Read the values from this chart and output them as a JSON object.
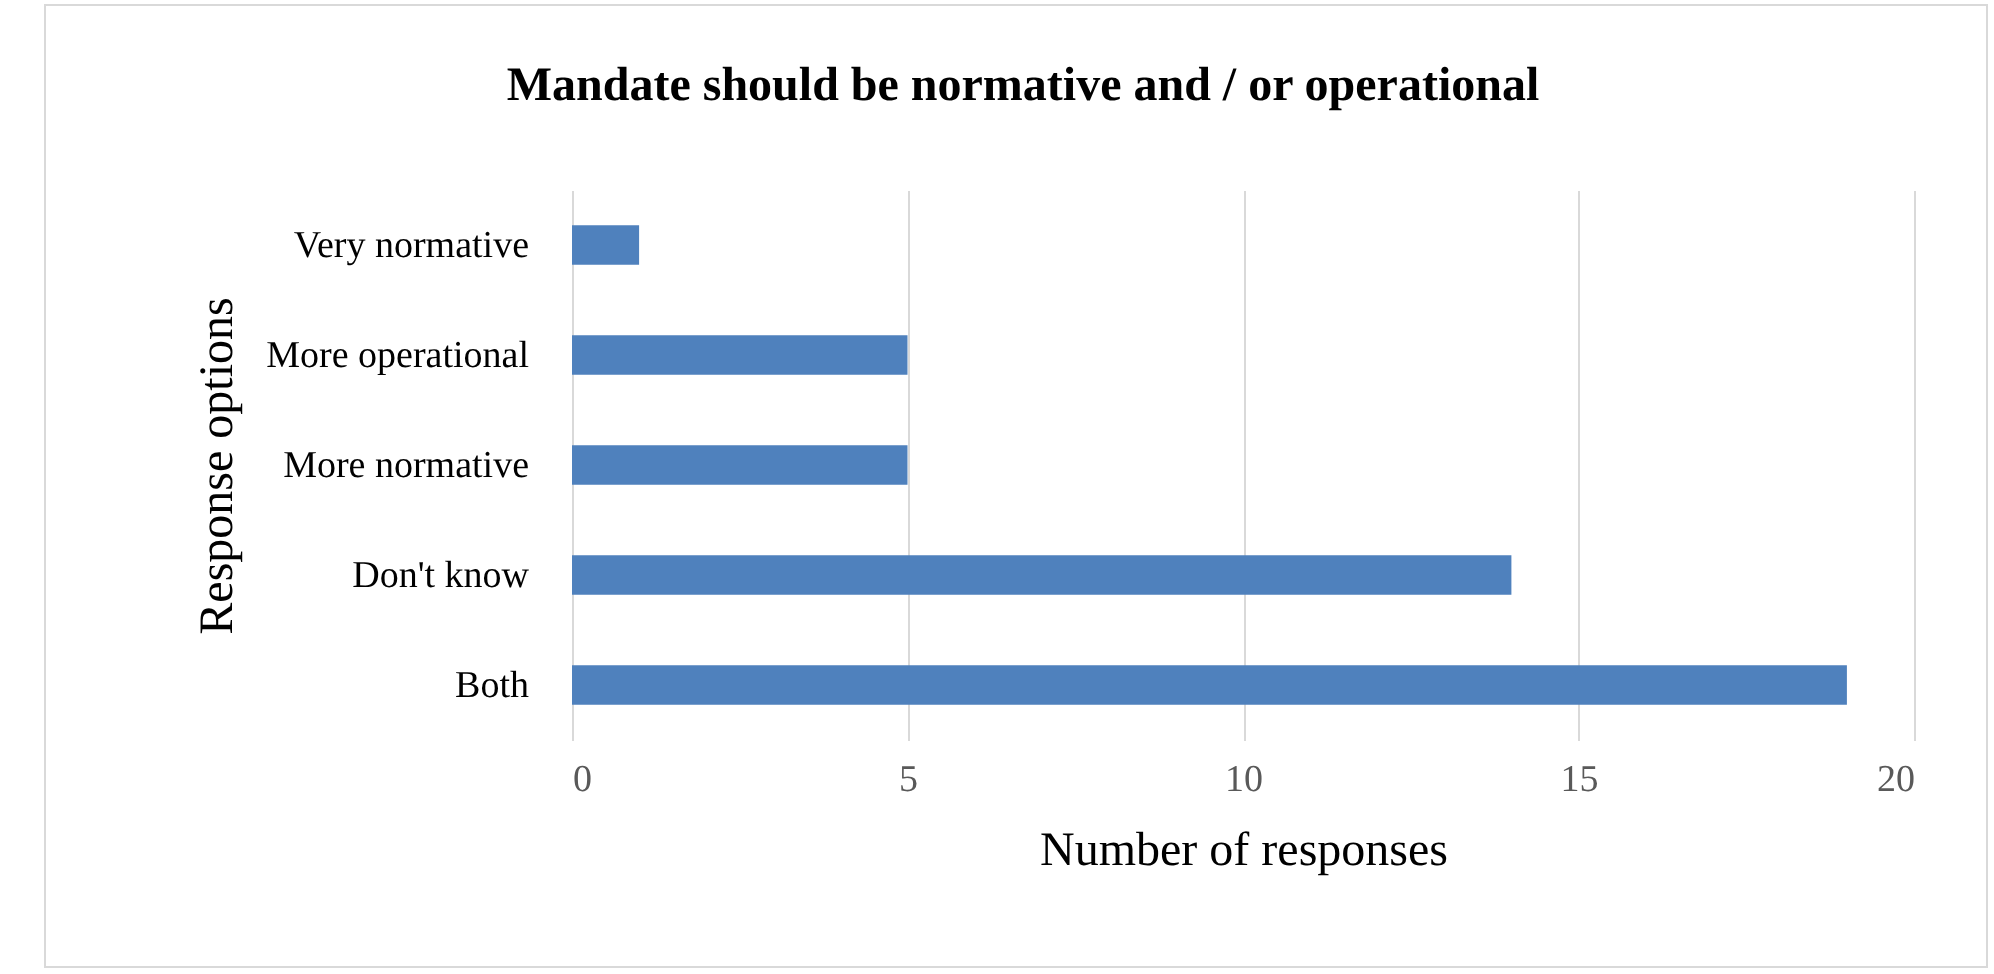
{
  "chart_data": {
    "type": "bar",
    "orientation": "horizontal",
    "title": "Mandate should be normative and / or operational",
    "xlabel": "Number of responses",
    "ylabel": "Response options",
    "categories": [
      "Very normative",
      "More operational",
      "More normative",
      "Don't know",
      "Both"
    ],
    "values": [
      1,
      5,
      5,
      14,
      19
    ],
    "color": "#4f81bd",
    "xlim": [
      0,
      20
    ],
    "xticks": [
      0,
      5,
      10,
      15,
      20
    ],
    "grid": "x"
  }
}
